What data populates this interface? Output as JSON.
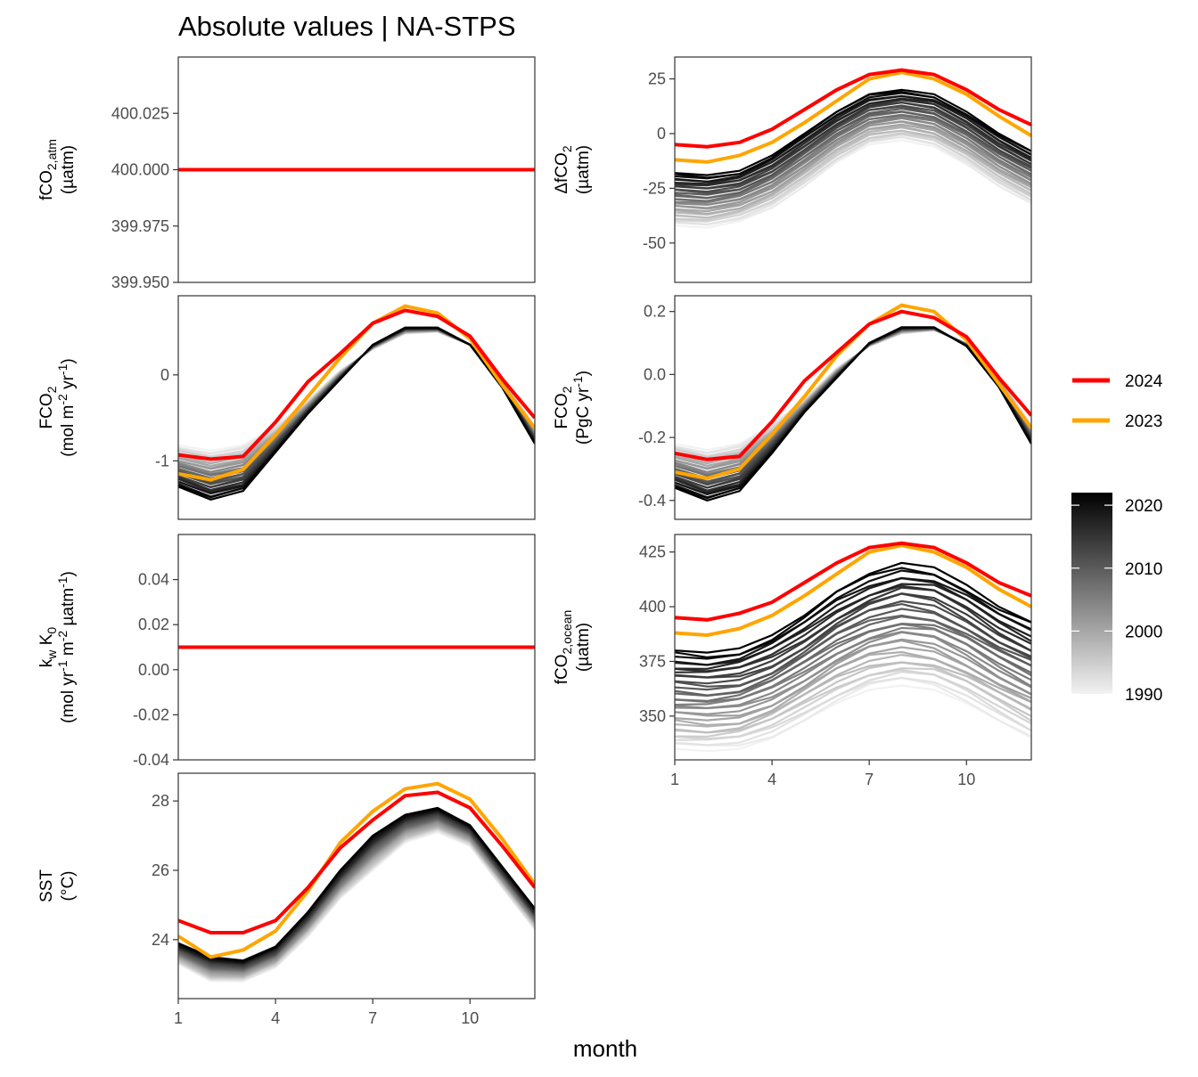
{
  "title": "Absolute values | NA-STPS",
  "xlabel": "month",
  "legend_years": [
    {
      "label": "2024",
      "color": "#ff0000"
    },
    {
      "label": "2023",
      "color": "#ffa500"
    }
  ],
  "colorbar": {
    "ticks": [
      "2020",
      "2010",
      "2000",
      "1990"
    ],
    "range": [
      1990,
      2022
    ],
    "low_color": "#f2f2f2",
    "high_color": "#000000"
  },
  "chart_data": [
    {
      "id": "fco2atm",
      "type": "line",
      "ylabel_main": "fCO",
      "ylabel_sub": "2,atm",
      "ylabel_sup": "",
      "ylabel_line2": "(µatm)",
      "ylim": [
        399.95,
        400.05
      ],
      "yticks": [
        "400.025",
        "400.000",
        "399.975",
        "399.950"
      ],
      "yticks_val": [
        400.025,
        400.0,
        399.975,
        399.95
      ],
      "ylabel_rich": [
        [
          {
            "t": "fCO"
          },
          {
            "t": "2,atm",
            "s": "sub"
          }
        ],
        [
          {
            "t": "(µatm)"
          }
        ]
      ],
      "series_2024": [
        400,
        400,
        400,
        400,
        400,
        400,
        400,
        400,
        400,
        400,
        400,
        400
      ],
      "series_2023": null,
      "background": null
    },
    {
      "id": "dfco2",
      "type": "line",
      "ylim": [
        -68,
        35
      ],
      "yticks": [
        "25",
        "0",
        "-25",
        "-50"
      ],
      "yticks_val": [
        25,
        0,
        -25,
        -50
      ],
      "ylabel_rich": [
        [
          {
            "t": "ΔfCO"
          },
          {
            "t": "2",
            "s": "sub"
          }
        ],
        [
          {
            "t": "(µatm)"
          }
        ]
      ],
      "series_2024": [
        -5,
        -6,
        -4,
        2,
        11,
        20,
        27,
        29,
        27,
        20,
        11,
        4
      ],
      "series_2023": [
        -12,
        -13,
        -10,
        -4,
        5,
        15,
        25,
        28,
        25,
        18,
        8,
        -1
      ],
      "background": {
        "base": [
          -42,
          -43,
          -40,
          -34,
          -24,
          -13,
          -5,
          -3,
          -6,
          -14,
          -24,
          -32
        ],
        "end": [
          -18,
          -19,
          -17,
          -10,
          0,
          10,
          18,
          20,
          18,
          10,
          0,
          -8
        ]
      }
    },
    {
      "id": "fco2flux",
      "type": "line",
      "ylim": [
        -1.68,
        0.92
      ],
      "yticks": [
        "0",
        "-1"
      ],
      "yticks_val": [
        0,
        -1
      ],
      "ylabel_rich": [
        [
          {
            "t": "FCO"
          },
          {
            "t": "2",
            "s": "sub"
          }
        ],
        [
          {
            "t": "(mol m"
          },
          {
            "t": "-2",
            "s": "sup"
          },
          {
            "t": " yr"
          },
          {
            "t": "-1",
            "s": "sup"
          },
          {
            "t": ")"
          }
        ]
      ],
      "series_2024": [
        -0.93,
        -0.98,
        -0.95,
        -0.55,
        -0.08,
        0.25,
        0.6,
        0.75,
        0.68,
        0.45,
        -0.05,
        -0.5
      ],
      "series_2023": [
        -1.15,
        -1.22,
        -1.1,
        -0.7,
        -0.25,
        0.2,
        0.6,
        0.8,
        0.72,
        0.42,
        -0.12,
        -0.62
      ],
      "background": {
        "base": [
          -0.82,
          -0.88,
          -0.82,
          -0.6,
          -0.3,
          0.05,
          0.3,
          0.48,
          0.5,
          0.35,
          -0.05,
          -0.6
        ],
        "end": [
          -1.3,
          -1.45,
          -1.35,
          -0.9,
          -0.45,
          -0.05,
          0.35,
          0.55,
          0.55,
          0.35,
          -0.15,
          -0.8
        ]
      }
    },
    {
      "id": "fco2pgc",
      "type": "line",
      "ylim": [
        -0.46,
        0.25
      ],
      "yticks": [
        "0.2",
        "0.0",
        "-0.2",
        "-0.4"
      ],
      "yticks_val": [
        0.2,
        0.0,
        -0.2,
        -0.4
      ],
      "ylabel_rich": [
        [
          {
            "t": "FCO"
          },
          {
            "t": "2",
            "s": "sub"
          }
        ],
        [
          {
            "t": "(PgC yr"
          },
          {
            "t": "-1",
            "s": "sup"
          },
          {
            "t": ")"
          }
        ]
      ],
      "series_2024": [
        -0.25,
        -0.27,
        -0.26,
        -0.15,
        -0.02,
        0.07,
        0.16,
        0.2,
        0.18,
        0.12,
        -0.01,
        -0.13
      ],
      "series_2023": [
        -0.31,
        -0.33,
        -0.3,
        -0.19,
        -0.07,
        0.06,
        0.16,
        0.22,
        0.2,
        0.11,
        -0.03,
        -0.17
      ],
      "background": {
        "base": [
          -0.22,
          -0.24,
          -0.22,
          -0.16,
          -0.08,
          0.02,
          0.09,
          0.13,
          0.14,
          0.1,
          -0.01,
          -0.16
        ],
        "end": [
          -0.36,
          -0.4,
          -0.37,
          -0.25,
          -0.12,
          -0.01,
          0.1,
          0.15,
          0.15,
          0.09,
          -0.04,
          -0.22
        ]
      }
    },
    {
      "id": "kwk0",
      "type": "line",
      "ylim": [
        -0.04,
        0.06
      ],
      "yticks": [
        "0.04",
        "0.02",
        "0.00",
        "-0.02",
        "-0.04"
      ],
      "yticks_val": [
        0.04,
        0.02,
        0.0,
        -0.02,
        -0.04
      ],
      "ylabel_rich": [
        [
          {
            "t": "k"
          },
          {
            "t": "w",
            "s": "sub"
          },
          {
            "t": " K"
          },
          {
            "t": "0",
            "s": "sub"
          }
        ],
        [
          {
            "t": "(mol yr"
          },
          {
            "t": "-1",
            "s": "sup"
          },
          {
            "t": " m"
          },
          {
            "t": "-2",
            "s": "sup"
          },
          {
            "t": " µatm"
          },
          {
            "t": "-1",
            "s": "sup"
          },
          {
            "t": ")"
          }
        ]
      ],
      "series_2024": [
        0.01,
        0.01,
        0.01,
        0.01,
        0.01,
        0.01,
        0.01,
        0.01,
        0.01,
        0.01,
        0.01,
        0.01
      ],
      "series_2023": null,
      "background": null
    },
    {
      "id": "fco2ocean",
      "type": "line",
      "ylim": [
        330,
        433
      ],
      "yticks": [
        "425",
        "400",
        "375",
        "350"
      ],
      "yticks_val": [
        425,
        400,
        375,
        350
      ],
      "ylabel_rich": [
        [
          {
            "t": "fCO"
          },
          {
            "t": "2,ocean",
            "s": "sub"
          }
        ],
        [
          {
            "t": "(µatm)"
          }
        ]
      ],
      "series_2024": [
        395,
        394,
        397,
        402,
        411,
        420,
        427,
        429,
        427,
        420,
        411,
        405
      ],
      "series_2023": [
        388,
        387,
        390,
        396,
        405,
        415,
        425,
        428,
        425,
        418,
        408,
        400
      ],
      "background": {
        "base": [
          335,
          334,
          335,
          340,
          348,
          356,
          362,
          364,
          362,
          356,
          348,
          340
        ],
        "end": [
          380,
          379,
          381,
          387,
          396,
          407,
          415,
          420,
          418,
          410,
          400,
          393
        ]
      }
    },
    {
      "id": "sst",
      "type": "line",
      "ylim": [
        22.3,
        28.8
      ],
      "yticks": [
        "28",
        "26",
        "24"
      ],
      "yticks_val": [
        28,
        26,
        24
      ],
      "ylabel_rich": [
        [
          {
            "t": "SST"
          }
        ],
        [
          {
            "t": "(°C)"
          }
        ]
      ],
      "series_2024": [
        24.55,
        24.2,
        24.2,
        24.55,
        25.5,
        26.65,
        27.45,
        28.15,
        28.25,
        27.8,
        26.7,
        25.5
      ],
      "series_2023": [
        24.1,
        23.5,
        23.7,
        24.25,
        25.4,
        26.8,
        27.7,
        28.35,
        28.5,
        28.05,
        26.9,
        25.6
      ],
      "background": {
        "base": [
          23.3,
          22.8,
          22.8,
          23.2,
          24.1,
          25.2,
          26.0,
          26.8,
          27.1,
          26.7,
          25.5,
          24.3
        ],
        "end": [
          23.9,
          23.5,
          23.4,
          23.8,
          24.8,
          26.0,
          27.0,
          27.6,
          27.8,
          27.3,
          26.1,
          24.9
        ]
      }
    },
    {
      "id": "xaxis",
      "xticks": [
        "1",
        "4",
        "7",
        "10"
      ],
      "xticks_val": [
        1,
        4,
        7,
        10
      ],
      "xlim": [
        1,
        12
      ]
    }
  ]
}
